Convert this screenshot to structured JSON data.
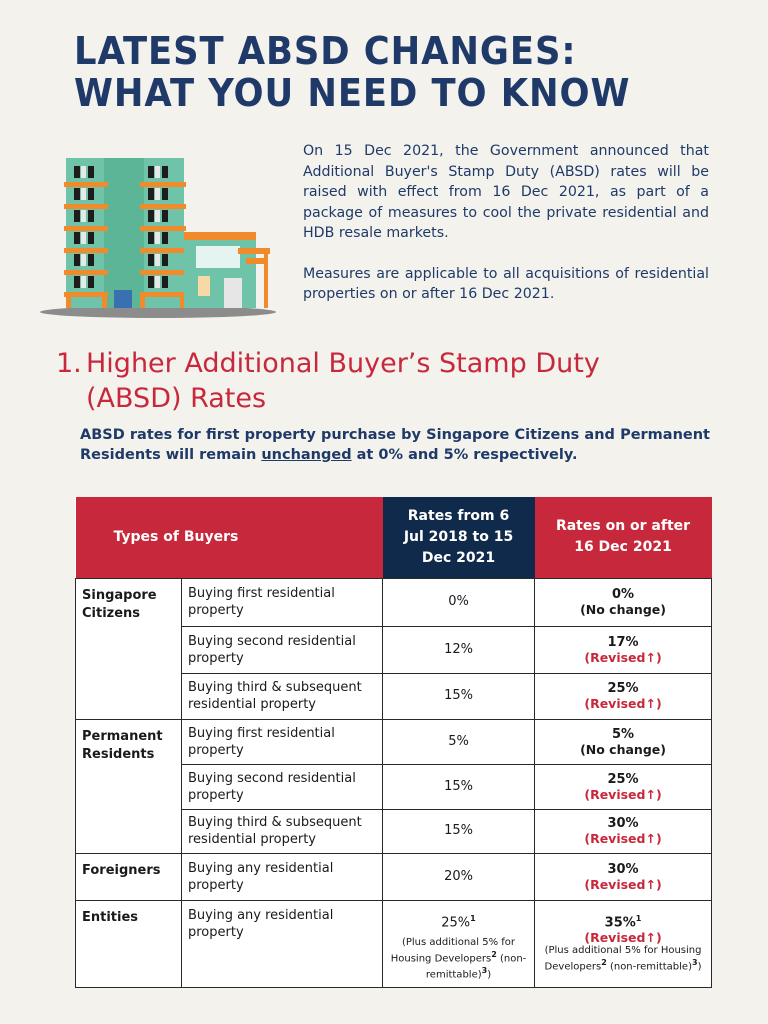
{
  "title": {
    "line1": "LATEST ABSD CHANGES:",
    "line2": "WHAT YOU NEED TO KNOW"
  },
  "intro": {
    "p1": "On 15 Dec 2021, the Government announced that Additional Buyer's Stamp Duty (ABSD) rates will be raised with effect from 16 Dec 2021, as part of a package of measures to cool the private residential and HDB resale markets.",
    "p2": "Measures are applicable to all acquisitions of residential properties on or after 16 Dec 2021."
  },
  "section": {
    "number": "1.",
    "title_line1": "Higher Additional Buyer’s Stamp Duty",
    "title_line2": "(ABSD) Rates"
  },
  "lead": {
    "before": "ABSD rates for first property purchase by Singapore Citizens and Permanent Residents will remain ",
    "emph": "unchanged",
    "after": " at 0% and 5% respectively."
  },
  "table": {
    "headers": {
      "types": "Types of Buyers",
      "old": "Rates from 6 Jul 2018 to 15 Dec 2021",
      "new": "Rates on or after 16 Dec 2021"
    },
    "groups": {
      "sc": "Singapore Citizens",
      "pr": "Permanent Residents",
      "fo": "Foreigners",
      "en": "Entities"
    },
    "rows": [
      {
        "desc": "Buying first residential property",
        "old": "0%",
        "new": "0%",
        "status": "(No change)"
      },
      {
        "desc": "Buying second residential property",
        "old": "12%",
        "new": "17%",
        "status": "(Revised↑)"
      },
      {
        "desc": "Buying third & subsequent residential property",
        "old": "15%",
        "new": "25%",
        "status": "(Revised↑)"
      },
      {
        "desc": "Buying first residential property",
        "old": "5%",
        "new": "5%",
        "status": "(No change)"
      },
      {
        "desc": "Buying second residential property",
        "old": "15%",
        "new": "25%",
        "status": "(Revised↑)"
      },
      {
        "desc": "Buying third & subsequent residential property",
        "old": "15%",
        "new": "30%",
        "status": "(Revised↑)"
      },
      {
        "desc": "Buying any residential property",
        "old": "20%",
        "new": "30%",
        "status": "(Revised↑)"
      },
      {
        "desc": "Buying any residential property",
        "old": "25%",
        "new": "35%",
        "status": "(Revised↑)"
      }
    ],
    "entities_note": {
      "old_sup": "1",
      "new_sup": "1",
      "note_a": "(Plus additional 5% for Housing Developers",
      "note_sup2": "2",
      "note_b": "(non-remittable)",
      "note_sup3": "3",
      "note_c": ")"
    }
  },
  "colors": {
    "navy": "#1f3a68",
    "red": "#c8283b",
    "header_navy": "#0f2a4a",
    "background": "#f3f2ed"
  },
  "icons": {
    "illustration": "apartment-building-icon"
  }
}
